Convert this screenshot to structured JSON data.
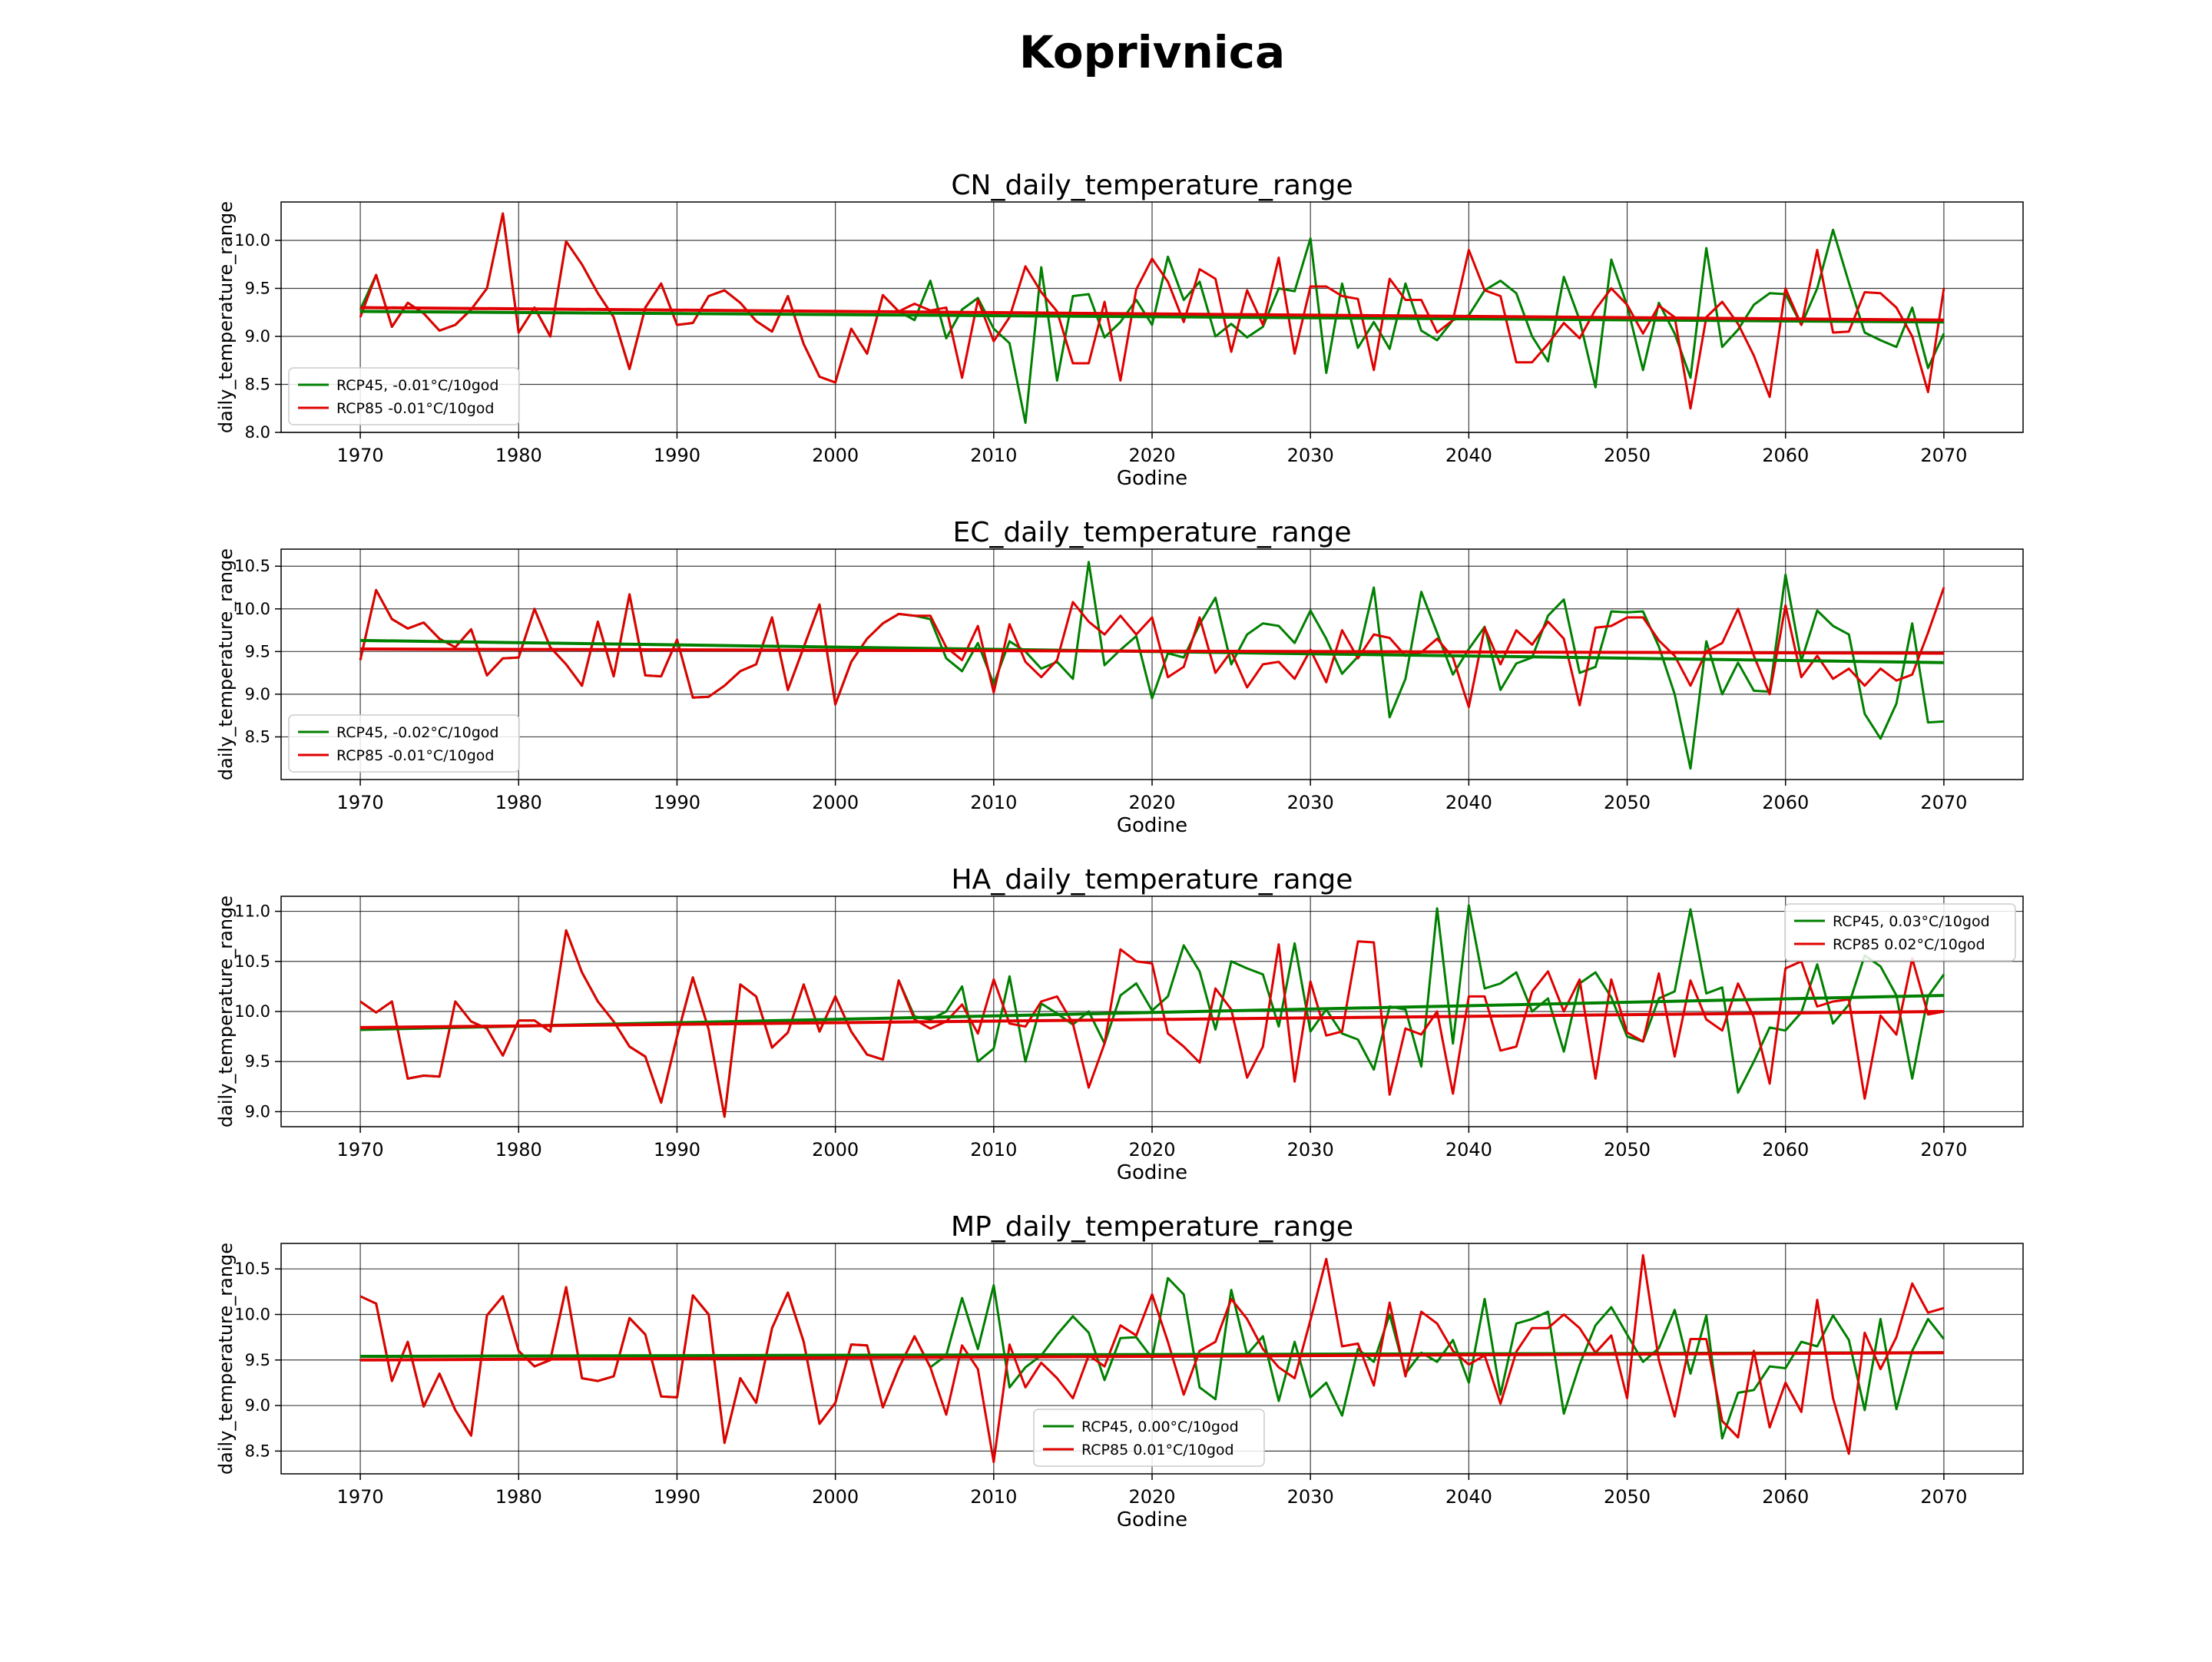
{
  "figure": {
    "title": "Koprivnica"
  },
  "colors": {
    "rcp45": "#008000",
    "rcp85": "#e00000"
  },
  "chart_data": [
    {
      "type": "line",
      "title": "CN_daily_temperature_range",
      "xlabel": "Godine",
      "ylabel": "daily_temperature_range",
      "xlim": [
        1965,
        2075
      ],
      "ylim": [
        8.0,
        10.4
      ],
      "xticks": [
        1970,
        1980,
        1990,
        2000,
        2010,
        2020,
        2030,
        2040,
        2050,
        2060,
        2070
      ],
      "yticks": [
        8.0,
        8.5,
        9.0,
        9.5,
        10.0
      ],
      "ytick_labels": [
        "8.0",
        "8.5",
        "9.0",
        "9.5",
        "10.0"
      ],
      "grid": true,
      "legend_position": "lower-left",
      "x_start": 1970,
      "series": [
        {
          "name": "RCP45, -0.01°C/10god",
          "color": "#008000",
          "values": [
            9.28,
            9.64,
            9.1,
            9.35,
            9.24,
            9.06,
            9.12,
            9.28,
            9.5,
            10.28,
            9.04,
            9.3,
            9.0,
            9.99,
            9.75,
            9.45,
            9.2,
            8.66,
            9.3,
            9.55,
            9.12,
            9.14,
            9.42,
            9.48,
            9.35,
            9.16,
            9.05,
            9.42,
            8.92,
            8.58,
            8.52,
            9.08,
            8.82,
            9.43,
            9.26,
            9.17,
            9.58,
            8.98,
            9.28,
            9.4,
            9.08,
            8.93,
            8.1,
            9.72,
            8.54,
            9.42,
            9.44,
            8.99,
            9.15,
            9.38,
            9.12,
            9.83,
            9.38,
            9.57,
            9.0,
            9.13,
            8.99,
            9.1,
            9.5,
            9.47,
            10.02,
            8.62,
            9.55,
            8.88,
            9.15,
            8.87,
            9.55,
            9.06,
            8.96,
            9.17,
            9.22,
            9.48,
            9.58,
            9.45,
            9.0,
            8.74,
            9.62,
            9.17,
            8.47,
            9.8,
            9.32,
            8.65,
            9.35,
            9.03,
            8.57,
            9.92,
            8.89,
            9.07,
            9.33,
            9.45,
            9.44,
            9.12,
            9.5,
            10.11,
            9.56,
            9.04,
            8.96,
            8.89,
            9.3,
            8.67,
            9.03
          ],
          "trend": [
            9.26,
            9.15
          ]
        },
        {
          "name": "RCP85 -0.01°C/10god",
          "color": "#e00000",
          "values": [
            9.2,
            9.64,
            9.1,
            9.35,
            9.24,
            9.06,
            9.12,
            9.28,
            9.5,
            10.28,
            9.04,
            9.3,
            9.0,
            9.99,
            9.75,
            9.45,
            9.2,
            8.66,
            9.3,
            9.55,
            9.12,
            9.14,
            9.42,
            9.48,
            9.35,
            9.16,
            9.05,
            9.42,
            8.92,
            8.58,
            8.52,
            9.08,
            8.82,
            9.43,
            9.26,
            9.34,
            9.27,
            9.3,
            8.57,
            9.38,
            8.95,
            9.2,
            9.73,
            9.46,
            9.26,
            8.72,
            8.72,
            9.36,
            8.54,
            9.49,
            9.81,
            9.57,
            9.15,
            9.7,
            9.6,
            8.84,
            9.48,
            9.12,
            9.82,
            8.82,
            9.52,
            9.52,
            9.42,
            9.39,
            8.65,
            9.6,
            9.38,
            9.38,
            9.04,
            9.17,
            9.9,
            9.48,
            9.42,
            8.73,
            8.73,
            8.92,
            9.14,
            8.98,
            9.28,
            9.5,
            9.33,
            9.03,
            9.32,
            9.2,
            8.25,
            9.2,
            9.36,
            9.13,
            8.8,
            8.37,
            9.5,
            9.12,
            9.9,
            9.04,
            9.05,
            9.46,
            9.45,
            9.3,
            9.0,
            8.42,
            9.5
          ],
          "trend": [
            9.3,
            9.17
          ]
        }
      ]
    },
    {
      "type": "line",
      "title": "EC_daily_temperature_range",
      "xlabel": "Godine",
      "ylabel": "daily_temperature_range",
      "xlim": [
        1965,
        2075
      ],
      "ylim": [
        8.0,
        10.7
      ],
      "xticks": [
        1970,
        1980,
        1990,
        2000,
        2010,
        2020,
        2030,
        2040,
        2050,
        2060,
        2070
      ],
      "yticks": [
        8.5,
        9.0,
        9.5,
        10.0,
        10.5
      ],
      "ytick_labels": [
        "8.5",
        "9.0",
        "9.5",
        "10.0",
        "10.5"
      ],
      "grid": true,
      "legend_position": "lower-left",
      "x_start": 1970,
      "series": [
        {
          "name": "RCP45, -0.02°C/10god",
          "color": "#008000",
          "values": [
            9.4,
            10.22,
            9.88,
            9.77,
            9.84,
            9.65,
            9.55,
            9.76,
            9.22,
            9.42,
            9.43,
            10.0,
            9.55,
            9.35,
            9.1,
            9.85,
            9.21,
            10.17,
            9.22,
            9.21,
            9.64,
            8.96,
            8.97,
            9.1,
            9.27,
            9.35,
            9.9,
            9.05,
            9.55,
            10.05,
            8.88,
            9.38,
            9.65,
            9.83,
            9.94,
            9.92,
            9.88,
            9.42,
            9.27,
            9.6,
            9.12,
            9.62,
            9.5,
            9.3,
            9.38,
            9.18,
            10.55,
            9.34,
            9.52,
            9.68,
            8.95,
            9.48,
            9.43,
            9.82,
            10.13,
            9.35,
            9.7,
            9.83,
            9.8,
            9.6,
            9.98,
            9.65,
            9.24,
            9.44,
            10.25,
            8.73,
            9.18,
            10.2,
            9.72,
            9.23,
            9.53,
            9.79,
            9.05,
            9.36,
            9.43,
            9.92,
            10.11,
            9.25,
            9.32,
            9.97,
            9.96,
            9.97,
            9.56,
            9.0,
            8.13,
            9.62,
            9.0,
            9.37,
            9.04,
            9.03,
            10.4,
            9.39,
            9.98,
            9.8,
            9.7,
            8.77,
            8.48,
            8.89,
            9.83,
            8.67,
            8.68
          ],
          "trend": [
            9.63,
            9.37
          ]
        },
        {
          "name": "RCP85 -0.01°C/10god",
          "color": "#e00000",
          "values": [
            9.4,
            10.22,
            9.88,
            9.77,
            9.84,
            9.65,
            9.55,
            9.76,
            9.22,
            9.42,
            9.43,
            10.0,
            9.55,
            9.35,
            9.1,
            9.85,
            9.21,
            10.17,
            9.22,
            9.21,
            9.64,
            8.96,
            8.97,
            9.1,
            9.27,
            9.35,
            9.9,
            9.05,
            9.55,
            10.05,
            8.88,
            9.38,
            9.65,
            9.83,
            9.94,
            9.92,
            9.92,
            9.55,
            9.4,
            9.8,
            9.02,
            9.82,
            9.38,
            9.2,
            9.4,
            10.08,
            9.85,
            9.7,
            9.92,
            9.7,
            9.9,
            9.2,
            9.32,
            9.9,
            9.25,
            9.5,
            9.08,
            9.35,
            9.38,
            9.18,
            9.52,
            9.14,
            9.75,
            9.42,
            9.7,
            9.66,
            9.45,
            9.49,
            9.65,
            9.43,
            8.85,
            9.78,
            9.35,
            9.75,
            9.58,
            9.85,
            9.65,
            8.87,
            9.78,
            9.8,
            9.9,
            9.9,
            9.63,
            9.45,
            9.1,
            9.5,
            9.6,
            10.0,
            9.45,
            9.0,
            10.04,
            9.2,
            9.45,
            9.18,
            9.3,
            9.1,
            9.3,
            9.16,
            9.23,
            9.72,
            10.25
          ],
          "trend": [
            9.53,
            9.48
          ]
        }
      ]
    },
    {
      "type": "line",
      "title": "HA_daily_temperature_range",
      "xlabel": "Godine",
      "ylabel": "daily_temperature_range",
      "xlim": [
        1965,
        2075
      ],
      "ylim": [
        8.85,
        11.15
      ],
      "xticks": [
        1970,
        1980,
        1990,
        2000,
        2010,
        2020,
        2030,
        2040,
        2050,
        2060,
        2070
      ],
      "yticks": [
        9.0,
        9.5,
        10.0,
        10.5,
        11.0
      ],
      "ytick_labels": [
        "9.0",
        "9.5",
        "10.0",
        "10.5",
        "11.0"
      ],
      "grid": true,
      "legend_position": "upper-right",
      "x_start": 1970,
      "series": [
        {
          "name": "RCP45, 0.03°C/10god",
          "color": "#008000",
          "values": [
            10.1,
            9.99,
            10.1,
            9.33,
            9.36,
            9.35,
            10.1,
            9.9,
            9.83,
            9.56,
            9.91,
            9.91,
            9.8,
            10.81,
            10.39,
            10.1,
            9.9,
            9.65,
            9.55,
            9.09,
            9.75,
            10.34,
            9.82,
            8.95,
            10.27,
            10.15,
            9.64,
            9.79,
            10.27,
            9.8,
            10.15,
            9.8,
            9.57,
            9.52,
            10.31,
            9.95,
            9.92,
            10.0,
            10.25,
            9.5,
            9.63,
            10.35,
            9.5,
            10.08,
            9.98,
            9.87,
            10.0,
            9.68,
            10.16,
            10.28,
            10.01,
            10.15,
            10.66,
            10.4,
            9.82,
            10.5,
            10.43,
            10.37,
            9.85,
            10.68,
            9.8,
            10.02,
            9.78,
            9.72,
            9.42,
            10.05,
            10.02,
            9.45,
            11.03,
            9.68,
            11.06,
            10.23,
            10.28,
            10.39,
            10.0,
            10.13,
            9.6,
            10.28,
            10.39,
            10.14,
            9.75,
            9.7,
            10.13,
            10.2,
            11.02,
            10.18,
            10.24,
            9.19,
            9.5,
            9.84,
            9.81,
            9.99,
            10.47,
            9.88,
            10.07,
            10.56,
            10.45,
            10.16,
            9.33,
            10.15,
            10.37
          ],
          "trend": [
            9.82,
            10.16
          ]
        },
        {
          "name": "RCP85 0.02°C/10god",
          "color": "#e00000",
          "values": [
            10.1,
            9.99,
            10.1,
            9.33,
            9.36,
            9.35,
            10.1,
            9.9,
            9.83,
            9.56,
            9.91,
            9.91,
            9.8,
            10.81,
            10.39,
            10.1,
            9.9,
            9.65,
            9.55,
            9.09,
            9.75,
            10.34,
            9.82,
            8.95,
            10.27,
            10.15,
            9.64,
            9.79,
            10.27,
            9.8,
            10.15,
            9.8,
            9.57,
            9.52,
            10.31,
            9.92,
            9.83,
            9.9,
            10.07,
            9.78,
            10.32,
            9.88,
            9.85,
            10.1,
            10.15,
            9.88,
            9.24,
            9.68,
            10.62,
            10.5,
            10.48,
            9.78,
            9.65,
            9.49,
            10.23,
            10.02,
            9.34,
            9.65,
            10.67,
            9.3,
            10.3,
            9.76,
            9.8,
            10.7,
            10.69,
            9.17,
            9.83,
            9.77,
            10.0,
            9.18,
            10.15,
            10.15,
            9.61,
            9.65,
            10.2,
            10.4,
            10.0,
            10.32,
            9.33,
            10.32,
            9.79,
            9.7,
            10.38,
            9.55,
            10.31,
            9.92,
            9.81,
            10.28,
            9.94,
            9.28,
            10.43,
            10.5,
            10.05,
            10.1,
            10.12,
            9.13,
            9.96,
            9.77,
            10.53,
            9.97,
            10.0
          ],
          "trend": [
            9.84,
            10.0
          ]
        }
      ]
    },
    {
      "type": "line",
      "title": "MP_daily_temperature_range",
      "xlabel": "Godine",
      "ylabel": "daily_temperature_range",
      "xlim": [
        1965,
        2075
      ],
      "ylim": [
        8.25,
        10.78
      ],
      "xticks": [
        1970,
        1980,
        1990,
        2000,
        2010,
        2020,
        2030,
        2040,
        2050,
        2060,
        2070
      ],
      "yticks": [
        8.5,
        9.0,
        9.5,
        10.0,
        10.5
      ],
      "ytick_labels": [
        "8.5",
        "9.0",
        "9.5",
        "10.0",
        "10.5"
      ],
      "grid": true,
      "legend_position": "lower-center",
      "x_start": 1970,
      "series": [
        {
          "name": "RCP45, 0.00°C/10god",
          "color": "#008000",
          "values": [
            10.2,
            10.12,
            9.27,
            9.7,
            8.99,
            9.35,
            8.95,
            8.67,
            9.99,
            10.2,
            9.6,
            9.43,
            9.5,
            10.3,
            9.3,
            9.27,
            9.32,
            9.96,
            9.78,
            9.1,
            9.09,
            10.21,
            10.0,
            8.59,
            9.3,
            9.03,
            9.85,
            10.24,
            9.7,
            8.8,
            9.03,
            9.67,
            9.66,
            8.98,
            9.41,
            9.76,
            9.42,
            9.55,
            10.18,
            9.62,
            10.32,
            9.2,
            9.42,
            9.55,
            9.78,
            9.98,
            9.8,
            9.28,
            9.74,
            9.75,
            9.52,
            10.4,
            10.22,
            9.2,
            9.07,
            10.27,
            9.56,
            9.76,
            9.05,
            9.7,
            9.09,
            9.25,
            8.89,
            9.62,
            9.48,
            10.0,
            9.35,
            9.58,
            9.48,
            9.72,
            9.25,
            10.17,
            9.12,
            9.9,
            9.95,
            10.03,
            8.91,
            9.45,
            9.88,
            10.08,
            9.78,
            9.48,
            9.63,
            10.05,
            9.35,
            9.99,
            8.64,
            9.14,
            9.17,
            9.43,
            9.41,
            9.7,
            9.65,
            9.99,
            9.72,
            8.95,
            9.95,
            8.96,
            9.6,
            9.95,
            9.73
          ],
          "trend": [
            9.54,
            9.58
          ]
        },
        {
          "name": "RCP85 0.01°C/10god",
          "color": "#e00000",
          "values": [
            10.2,
            10.12,
            9.27,
            9.7,
            8.99,
            9.35,
            8.95,
            8.67,
            9.99,
            10.2,
            9.6,
            9.43,
            9.5,
            10.3,
            9.3,
            9.27,
            9.32,
            9.96,
            9.78,
            9.1,
            9.09,
            10.21,
            10.0,
            8.59,
            9.3,
            9.03,
            9.85,
            10.24,
            9.7,
            8.8,
            9.03,
            9.67,
            9.66,
            8.98,
            9.41,
            9.76,
            9.42,
            8.9,
            9.66,
            9.4,
            8.38,
            9.67,
            9.2,
            9.47,
            9.3,
            9.08,
            9.55,
            9.43,
            9.88,
            9.77,
            10.22,
            9.7,
            9.12,
            9.6,
            9.7,
            10.17,
            9.95,
            9.62,
            9.42,
            9.3,
            9.94,
            10.61,
            9.65,
            9.68,
            9.22,
            10.13,
            9.32,
            10.03,
            9.9,
            9.6,
            9.45,
            9.55,
            9.02,
            9.59,
            9.85,
            9.85,
            10.0,
            9.85,
            9.58,
            9.77,
            9.08,
            10.65,
            9.5,
            8.88,
            9.73,
            9.73,
            8.83,
            8.65,
            9.6,
            8.76,
            9.25,
            8.93,
            10.16,
            9.08,
            8.47,
            9.8,
            9.4,
            9.75,
            10.34,
            10.02,
            10.07
          ],
          "trend": [
            9.5,
            9.58
          ]
        }
      ]
    }
  ]
}
